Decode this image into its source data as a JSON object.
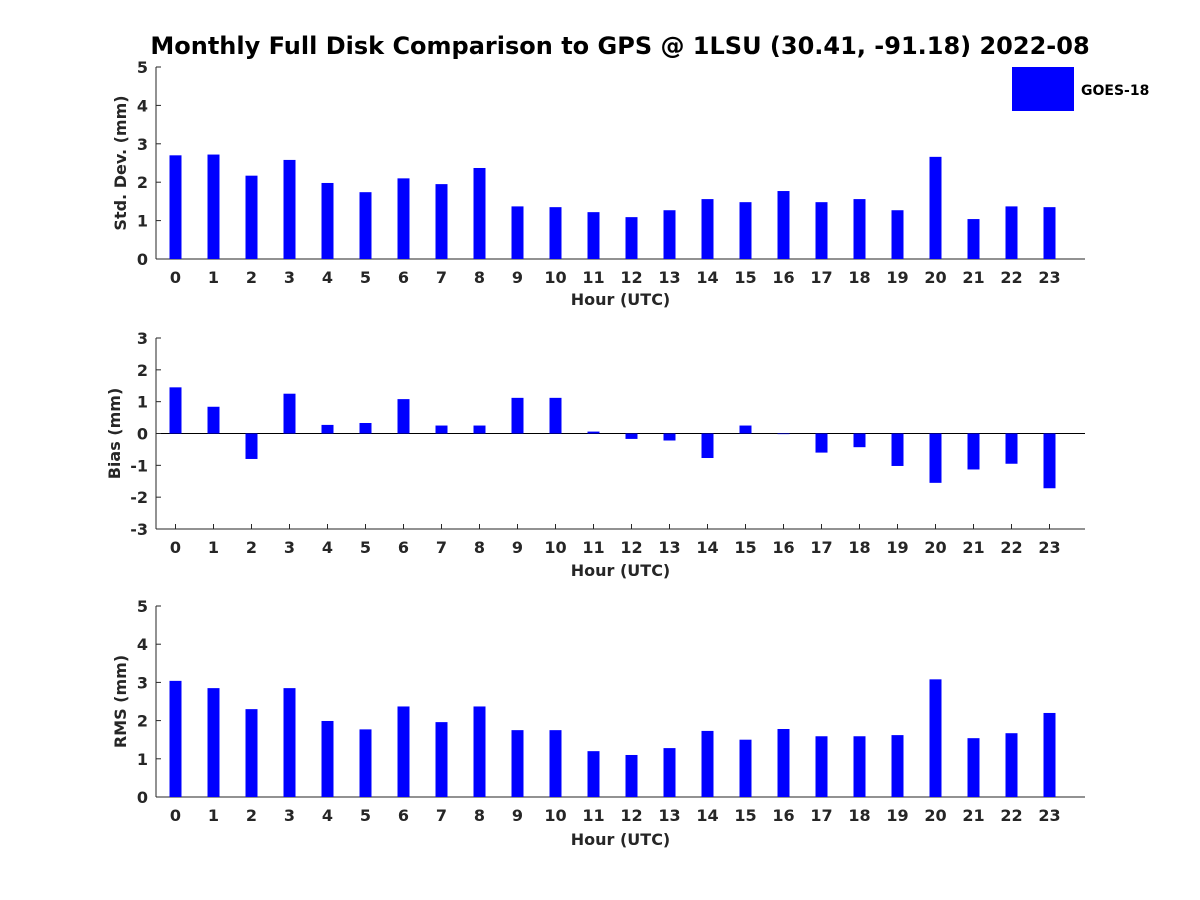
{
  "title": "Monthly Full Disk Comparison to GPS @ 1LSU (30.41, -91.18) 2022-08",
  "legend": {
    "label": "GOES-18",
    "color": "#0000ff",
    "placement": "top-right"
  },
  "chart_data": [
    {
      "type": "bar",
      "xlabel": "Hour (UTC)",
      "ylabel": "Std. Dev. (mm)",
      "ylim": [
        0,
        5
      ],
      "yticks": [
        "0",
        "1",
        "2",
        "3",
        "4",
        "5"
      ],
      "categories": [
        "0",
        "1",
        "2",
        "3",
        "4",
        "5",
        "6",
        "7",
        "8",
        "9",
        "10",
        "11",
        "12",
        "13",
        "14",
        "15",
        "16",
        "17",
        "18",
        "19",
        "20",
        "21",
        "22",
        "23"
      ],
      "series": [
        {
          "name": "GOES-18",
          "color": "#0000ff",
          "values": [
            2.7,
            2.72,
            2.17,
            2.58,
            1.98,
            1.74,
            2.1,
            1.95,
            2.37,
            1.37,
            1.35,
            1.22,
            1.09,
            1.27,
            1.56,
            1.48,
            1.77,
            1.48,
            1.56,
            1.27,
            2.66,
            1.04,
            1.37,
            1.35
          ]
        }
      ]
    },
    {
      "type": "bar",
      "xlabel": "Hour (UTC)",
      "ylabel": "Bias (mm)",
      "ylim": [
        -3,
        3
      ],
      "yticks": [
        "-3",
        "-2",
        "-1",
        "0",
        "1",
        "2",
        "3"
      ],
      "categories": [
        "0",
        "1",
        "2",
        "3",
        "4",
        "5",
        "6",
        "7",
        "8",
        "9",
        "10",
        "11",
        "12",
        "13",
        "14",
        "15",
        "16",
        "17",
        "18",
        "19",
        "20",
        "21",
        "22",
        "23"
      ],
      "series": [
        {
          "name": "GOES-18",
          "color": "#0000ff",
          "values": [
            1.45,
            0.84,
            -0.8,
            1.25,
            0.27,
            0.33,
            1.08,
            0.25,
            0.25,
            1.12,
            1.12,
            0.06,
            -0.17,
            -0.22,
            -0.77,
            0.25,
            -0.02,
            -0.6,
            -0.43,
            -1.02,
            -1.55,
            -1.13,
            -0.95,
            -1.72
          ]
        }
      ]
    },
    {
      "type": "bar",
      "xlabel": "Hour (UTC)",
      "ylabel": "RMS (mm)",
      "ylim": [
        0,
        5
      ],
      "yticks": [
        "0",
        "1",
        "2",
        "3",
        "4",
        "5"
      ],
      "categories": [
        "0",
        "1",
        "2",
        "3",
        "4",
        "5",
        "6",
        "7",
        "8",
        "9",
        "10",
        "11",
        "12",
        "13",
        "14",
        "15",
        "16",
        "17",
        "18",
        "19",
        "20",
        "21",
        "22",
        "23"
      ],
      "series": [
        {
          "name": "GOES-18",
          "color": "#0000ff",
          "values": [
            3.04,
            2.85,
            2.3,
            2.85,
            1.99,
            1.77,
            2.37,
            1.96,
            2.37,
            1.75,
            1.75,
            1.2,
            1.1,
            1.28,
            1.73,
            1.5,
            1.78,
            1.59,
            1.59,
            1.62,
            3.08,
            1.54,
            1.67,
            2.2
          ]
        }
      ]
    }
  ]
}
